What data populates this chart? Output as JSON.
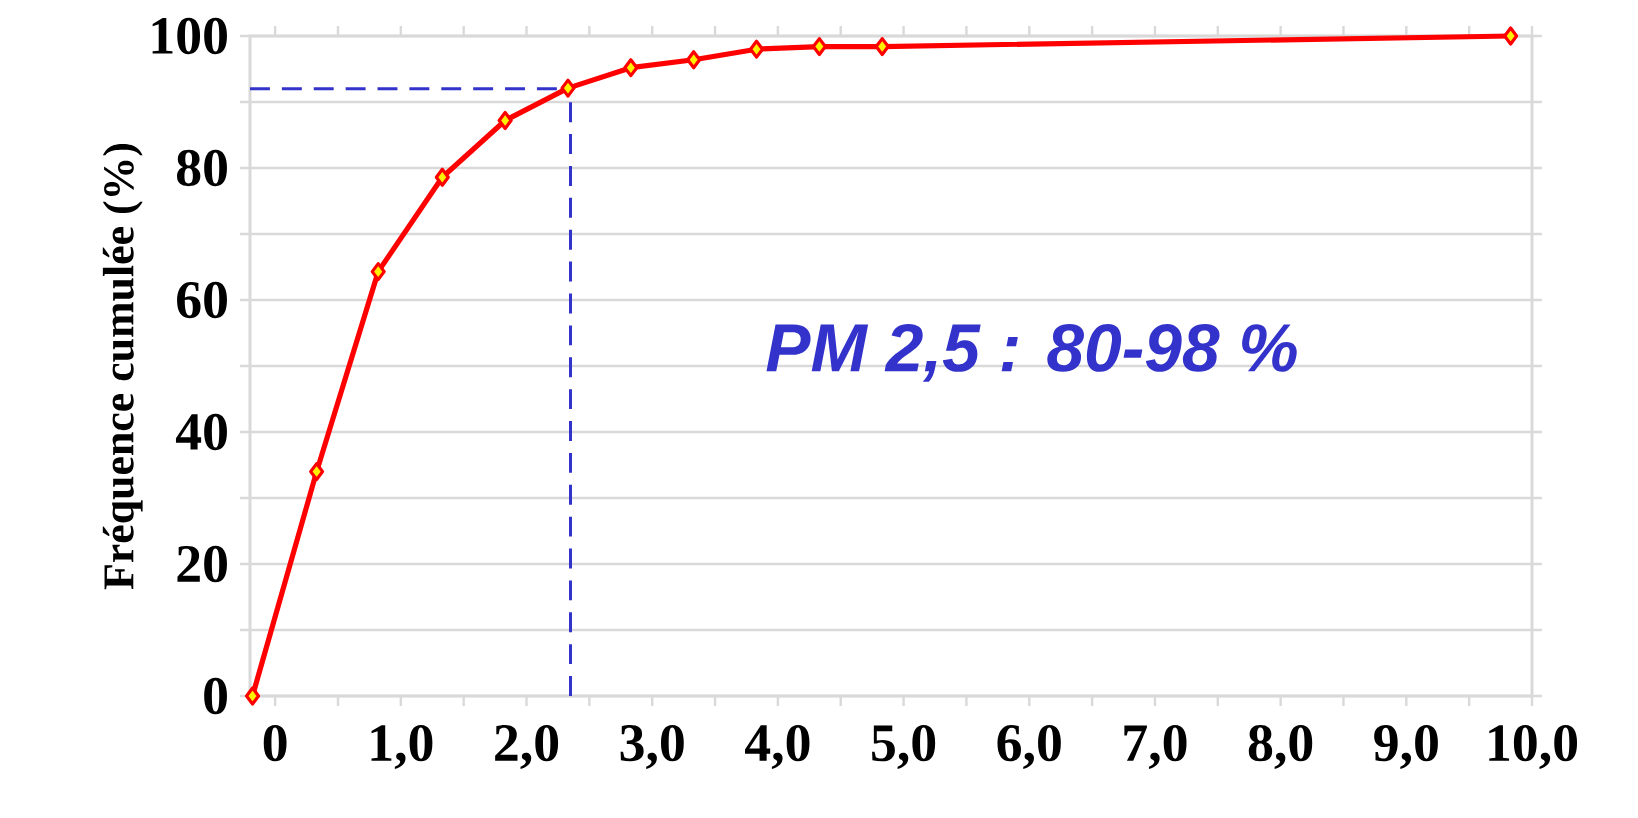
{
  "chart_data": {
    "type": "line",
    "ylabel": "Fréquence cumulée (%)",
    "x": [
      -0.18,
      0.33,
      0.82,
      1.33,
      1.83,
      2.33,
      2.83,
      3.33,
      3.83,
      4.33,
      4.83,
      9.83
    ],
    "series": [
      {
        "color": "#ff0000",
        "values": [
          0,
          34,
          64.3,
          78.6,
          87.2,
          92.1,
          95.2,
          96.4,
          98,
          98.4,
          98.4,
          100
        ]
      }
    ],
    "xlim": [
      -0.2,
      10
    ],
    "xticks": [
      {
        "value": 0,
        "label": "0"
      },
      {
        "value": 0.5,
        "label": null
      },
      {
        "value": 1,
        "label": "1,0"
      },
      {
        "value": 1.5,
        "label": null
      },
      {
        "value": 2,
        "label": "2,0"
      },
      {
        "value": 2.5,
        "label": null
      },
      {
        "value": 3,
        "label": "3,0"
      },
      {
        "value": 3.5,
        "label": null
      },
      {
        "value": 4,
        "label": "4,0"
      },
      {
        "value": 4.5,
        "label": null
      },
      {
        "value": 5,
        "label": "5,0"
      },
      {
        "value": 5.5,
        "label": null
      },
      {
        "value": 6,
        "label": "6,0"
      },
      {
        "value": 6.5,
        "label": null
      },
      {
        "value": 7,
        "label": "7,0"
      },
      {
        "value": 7.5,
        "label": null
      },
      {
        "value": 8,
        "label": "8,0"
      },
      {
        "value": 8.5,
        "label": null
      },
      {
        "value": 9,
        "label": "9,0"
      },
      {
        "value": 9.5,
        "label": null
      },
      {
        "value": 10,
        "label": "10,0"
      }
    ],
    "ylim": [
      0,
      100
    ],
    "yticks": [
      0,
      {
        "value": 10,
        "label": null
      },
      20,
      {
        "value": 30,
        "label": null
      },
      40,
      {
        "value": 50,
        "label": null
      },
      60,
      {
        "value": 70,
        "label": null
      },
      80,
      {
        "value": 90,
        "label": null
      },
      100
    ],
    "grid": "y",
    "marker": "diamond",
    "line_style": "solid",
    "ref_lines": [
      {
        "axis": "x",
        "value": 2.35,
        "color": "#3333cc",
        "line_style": "dashed"
      },
      {
        "axis": "y",
        "value": 92,
        "color": "#3333cc",
        "line_style": "dashed"
      }
    ],
    "annotations": [
      "PM 2,5 :  80-98 %"
    ]
  }
}
